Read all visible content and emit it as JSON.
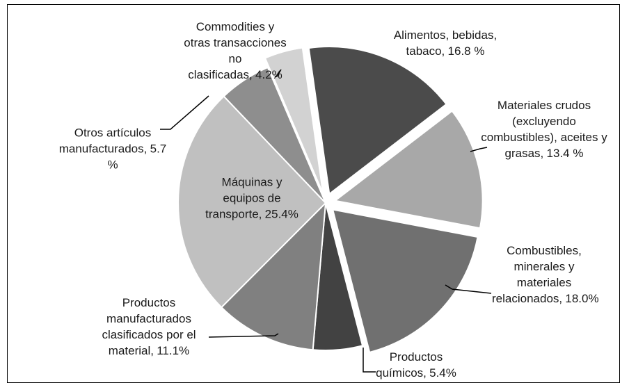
{
  "chart_data": {
    "type": "pie",
    "categories": [
      "Alimentos, bebidas, tabaco,",
      "Materiales crudos (excluyendo combustibles), aceites y grasas,",
      "Combustibles, minerales y materiales relacionados,",
      "Productos químicos,",
      "Productos manufacturados clasificados por el material,",
      "Máquinas y equipos de transporte,",
      "Otros artículos manufacturados,",
      "Commodities y otras transacciones no clasificadas,"
    ],
    "values": [
      16.8,
      13.4,
      18.0,
      5.4,
      11.1,
      25.4,
      5.7,
      4.2
    ],
    "value_labels": [
      "16.8 %",
      "13.4 %",
      "18.0%",
      "5.4%",
      "11.1%",
      "25.4%",
      "5.7 %",
      "4.2%"
    ],
    "colors": [
      "#4b4b4b",
      "#a8a8a8",
      "#707070",
      "#424242",
      "#808080",
      "#c0c0c0",
      "#8e8e8e",
      "#d2d2d2"
    ],
    "exploded": [
      true,
      true,
      true,
      false,
      false,
      false,
      false,
      true
    ]
  }
}
